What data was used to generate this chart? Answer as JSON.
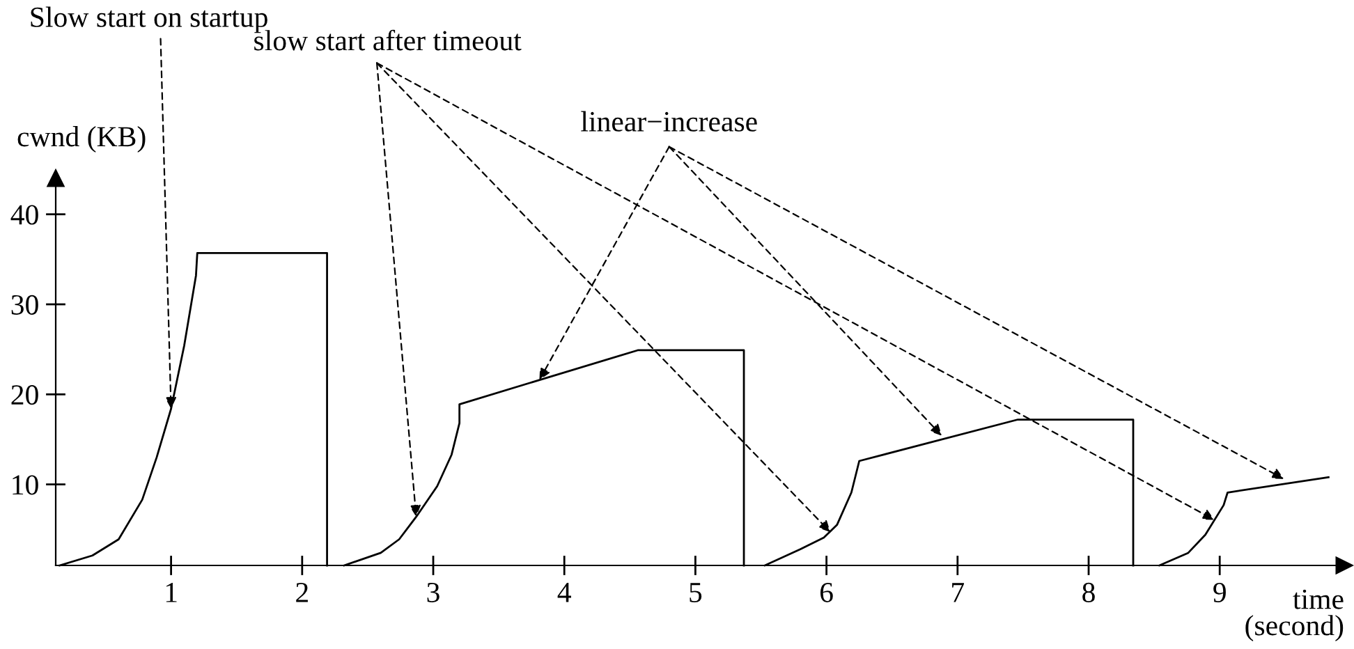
{
  "chart_data": {
    "type": "line",
    "xlabel": "time\n(second)",
    "ylabel": "cwnd (KB)",
    "xlim": [
      0.12,
      9.95
    ],
    "ylim": [
      1,
      44
    ],
    "xticks": [
      1,
      2,
      3,
      4,
      5,
      6,
      7,
      8,
      9
    ],
    "yticks": [
      10,
      20,
      30,
      40
    ],
    "grid": false,
    "legend": false,
    "marker": "none",
    "line_style": "solid",
    "series": [
      {
        "color": "#000000",
        "x": [
          0.15,
          0.4,
          0.6,
          0.78,
          0.89,
          1.0,
          1.1,
          1.19,
          1.2,
          2.19,
          2.19
        ],
        "values": [
          1,
          2.1,
          3.9,
          8.3,
          13,
          18.4,
          25.4,
          33.2,
          35.7,
          35.7,
          1
        ]
      },
      {
        "color": "#000000",
        "x": [
          2.32,
          2.6,
          2.74,
          2.87,
          3.03,
          3.14,
          3.2,
          3.2,
          4.56,
          5.37,
          5.37
        ],
        "values": [
          1,
          2.4,
          3.9,
          6.4,
          9.8,
          13.3,
          16.8,
          18.9,
          24.9,
          24.9,
          1
        ]
      },
      {
        "color": "#000000",
        "x": [
          5.53,
          5.8,
          5.98,
          6.08,
          6.19,
          6.25,
          7.46,
          8.34,
          8.34
        ],
        "values": [
          1,
          2.8,
          4.1,
          5.5,
          9.1,
          12.6,
          17.2,
          17.2,
          1
        ]
      },
      {
        "color": "#000000",
        "x": [
          8.54,
          8.76,
          8.89,
          9.03,
          9.06,
          9.83
        ],
        "values": [
          1,
          2.4,
          4.4,
          7.7,
          9.1,
          10.8
        ]
      }
    ],
    "annotations": [
      {
        "text": "Slow start on startup",
        "x": 1.0,
        "y": 18.4
      },
      {
        "text": "slow start after timeout",
        "x": 2.87,
        "y": 6.4
      },
      {
        "text": "linear−increase",
        "x": 3.81,
        "y": 21.6
      }
    ]
  }
}
